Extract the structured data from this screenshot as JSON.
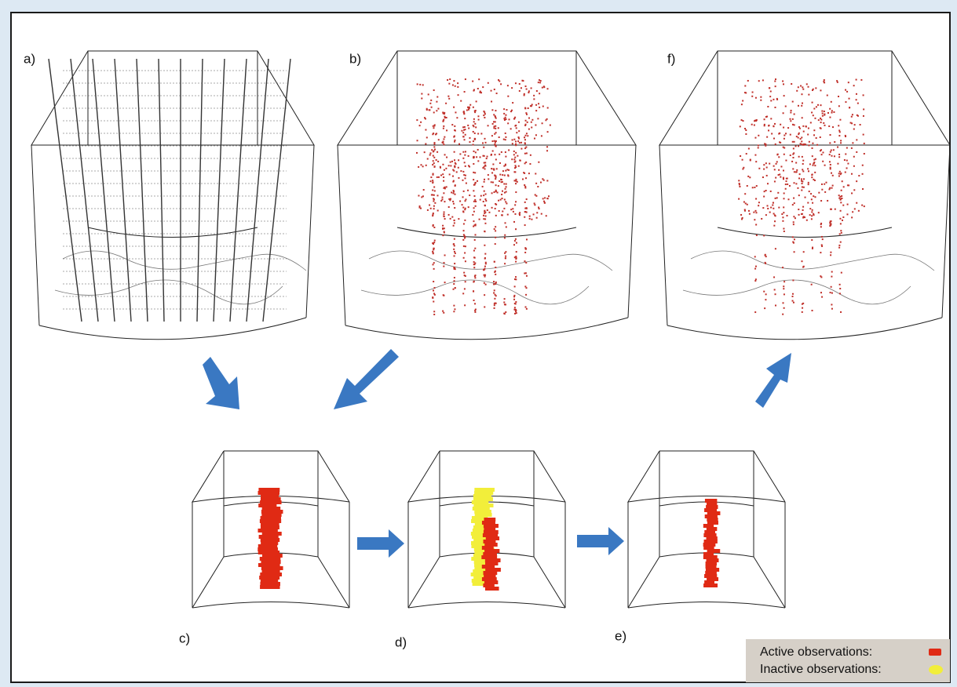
{
  "panels": [
    {
      "label": "a)"
    },
    {
      "label": "b)"
    },
    {
      "label": "f)"
    },
    {
      "label": "c)"
    },
    {
      "label": "d)"
    },
    {
      "label": "e)"
    }
  ],
  "legend": {
    "items": [
      {
        "label": "Active observations:",
        "color": "#e02a14"
      },
      {
        "label": "Inactive observations:",
        "color": "#f2ee3a"
      }
    ]
  }
}
